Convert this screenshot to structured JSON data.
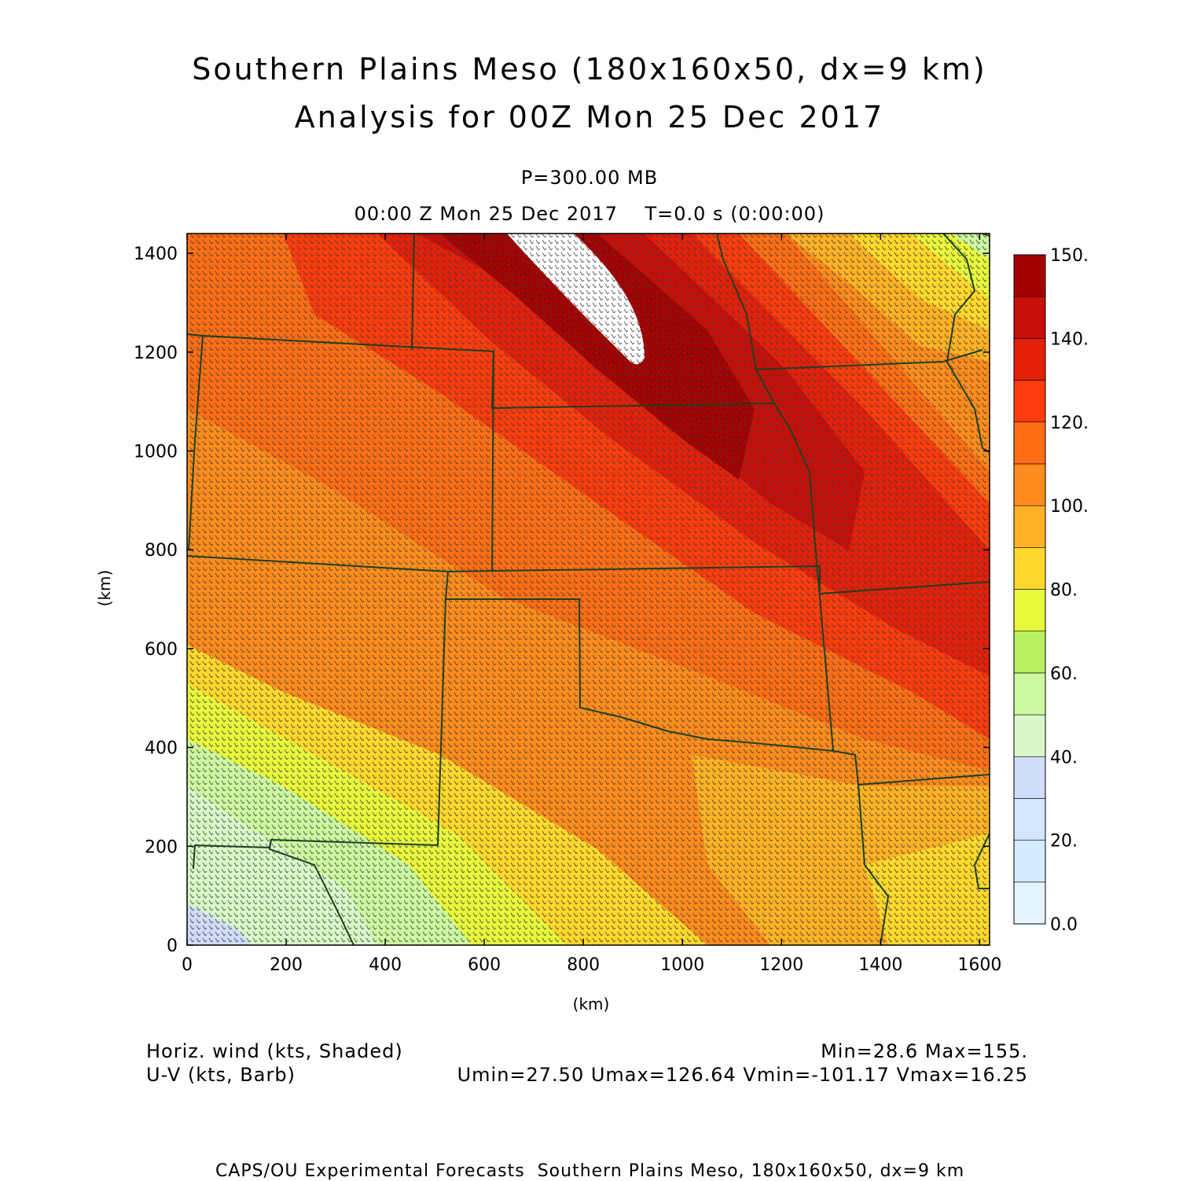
{
  "header": {
    "title_line1": "Southern Plains Meso (180x160x50, dx=9 km)",
    "title_line2": "Analysis for 00Z Mon 25 Dec 2017",
    "level": "P=300.00 MB",
    "time": "00:00 Z Mon 25 Dec 2017    T=0.0 s (0:00:00)"
  },
  "footer": {
    "field1": "Horiz. wind (kts, Shaded)",
    "field2": "U-V (kts, Barb)",
    "minmax": "Min=28.6 Max=155.",
    "uv_stats": "Umin=27.50 Umax=126.64 Vmin=-101.17 Vmax=16.25",
    "credit": "CAPS/OU Experimental Forecasts  Southern Plains Meso, 180x160x50, dx=9 km"
  },
  "chart_data": {
    "type": "heatmap",
    "title": "Southern Plains Meso (180x160x50, dx=9 km)",
    "xlabel": "(km)",
    "ylabel": "(km)",
    "xlim": [
      0,
      1620
    ],
    "ylim": [
      0,
      1440
    ],
    "x_ticks": [
      "0",
      "200",
      "400",
      "600",
      "800",
      "1000",
      "1200",
      "1400",
      "1600"
    ],
    "y_ticks": [
      "0",
      "200",
      "400",
      "600",
      "800",
      "1000",
      "1200",
      "1400"
    ],
    "colorbar": {
      "label_values": [
        "0.0",
        "20.",
        "40.",
        "60.",
        "80.",
        "100.",
        "120.",
        "140.",
        "150."
      ],
      "levels": [
        0,
        10,
        20,
        30,
        40,
        50,
        60,
        70,
        80,
        90,
        100,
        110,
        120,
        130,
        140,
        150
      ],
      "colors": [
        "#e6f4ff",
        "#d4ecff",
        "#d2e6ff",
        "#d0dcf8",
        "#d8f8c8",
        "#ccf8a0",
        "#b8f060",
        "#e8f83c",
        "#ffd82c",
        "#ffb224",
        "#ff8c1c",
        "#ff6e14",
        "#ff3c0c",
        "#e4200a",
        "#c80e08",
        "#a40000"
      ]
    },
    "field_min": 28.6,
    "field_max": 155,
    "u_range": [
      27.5,
      126.64
    ],
    "v_range": [
      -101.17,
      16.25
    ],
    "jet_max_region_km": {
      "x": [
        650,
        930
      ],
      "y": [
        1200,
        1440
      ]
    },
    "barb_color": "#3c3c3c",
    "border_color": "#1c4020"
  }
}
